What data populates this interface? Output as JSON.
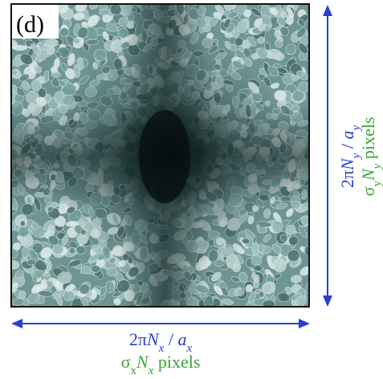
{
  "panel_label": "(d)",
  "x_label": {
    "line1": [
      "2π",
      "N",
      "x",
      " / ",
      "a",
      "x"
    ],
    "line2": [
      "σ",
      "x",
      "N",
      "x",
      " pixels"
    ]
  },
  "y_label": {
    "line1": [
      "2π",
      "N",
      "y",
      " / ",
      "a",
      "y"
    ],
    "line2": [
      "σ",
      "y",
      "N",
      "y",
      " pixels"
    ]
  }
}
